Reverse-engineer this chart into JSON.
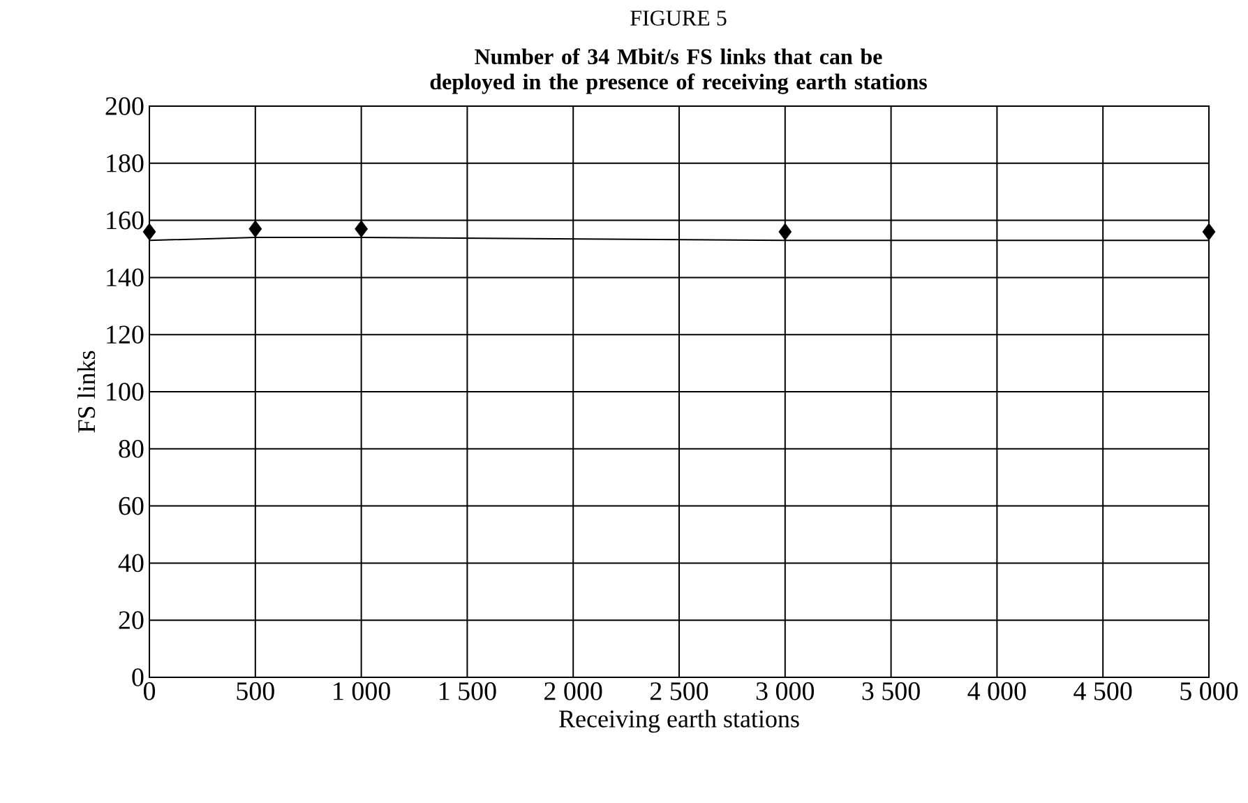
{
  "chart_data": {
    "type": "scatter",
    "title": "FIGURE 5",
    "subtitle": "Number of 34 Mbit/s FS links that can be deployed in the presence of receiving earth stations",
    "xlabel": "Receiving earth stations",
    "ylabel": "FS links",
    "series": [
      {
        "type": "line",
        "color": "#000000",
        "marker": "none",
        "x": [
          0,
          500,
          1000,
          3000,
          5000
        ],
        "values": [
          153,
          154,
          154,
          153,
          153
        ]
      },
      {
        "type": "scatter",
        "color": "#000000",
        "marker": "diamond",
        "x": [
          0,
          500,
          1000,
          3000,
          5000
        ],
        "values": [
          156,
          157,
          157,
          156,
          156
        ]
      }
    ],
    "xlim": [
      0,
      5000
    ],
    "ylim": [
      0,
      200
    ],
    "xticks": [
      0,
      500,
      {
        "value": 1000,
        "label": "1 000"
      },
      {
        "value": 1500,
        "label": "1 500"
      },
      {
        "value": 2000,
        "label": "2 000"
      },
      {
        "value": 2500,
        "label": "2 500"
      },
      {
        "value": 3000,
        "label": "3 000"
      },
      {
        "value": 3500,
        "label": "3 500"
      },
      {
        "value": 4000,
        "label": "4 000"
      },
      {
        "value": 4500,
        "label": "4 500"
      },
      {
        "value": 5000,
        "label": "5 000"
      }
    ],
    "yticks": [
      0,
      20,
      40,
      60,
      80,
      100,
      120,
      140,
      160,
      180,
      200
    ],
    "grid": true
  }
}
